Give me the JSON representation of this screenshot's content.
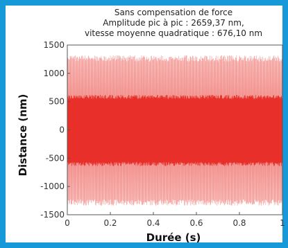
{
  "chart_data": {
    "type": "line",
    "title": "Sans compensation de force",
    "subtitle_lines": [
      "Amplitude pic à pic : 2659,37 nm,",
      "vitesse moyenne quadratique : 676,10 nm"
    ],
    "xlabel": "Durée (s)",
    "ylabel": "Distance (nm)",
    "xlim": [
      0,
      1
    ],
    "ylim": [
      -1500,
      1500
    ],
    "x_ticks": [
      "0",
      "0.2",
      "0.4",
      "0.6",
      "0.8",
      "1"
    ],
    "y_ticks": [
      "1500",
      "1000",
      "500",
      "0",
      "-500",
      "-1000",
      "-1500"
    ],
    "grid": false,
    "envelopes": {
      "outer_max": 1320,
      "outer_min": -1340,
      "inner_max": 620,
      "inner_min": -640
    },
    "colors": {
      "outer_band": "#f07a75",
      "inner_band": "#e8302a",
      "frame": "#1798d8"
    }
  }
}
